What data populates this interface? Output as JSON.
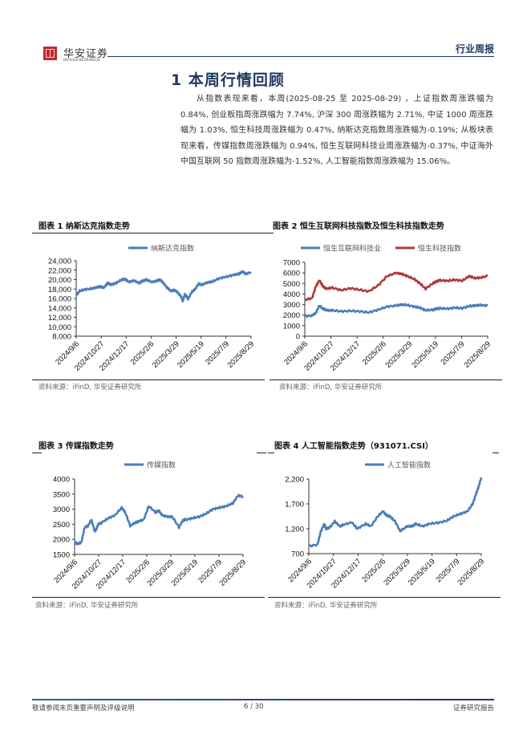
{
  "header": {
    "logo_cn": "华安证券",
    "logo_en": "HUAAN RESEARCH",
    "report_type": "行业周报"
  },
  "section": {
    "title": "1 本周行情回顾",
    "paragraph": "从指数表现来看，本周(2025-08-25 至 2025-08-29) ，上证指数周涨跌幅为0.84%, 创业板指周涨跌幅为 7.74%, 沪深 300 周涨跌幅为 2.71%, 中证 1000 周涨跌幅为 1.03%, 恒生科技周涨跌幅为 0.47%, 纳斯达克指数周涨跌幅为-0.19%; 从板块表现来看，传媒指数周涨跌幅为 0.94%, 恒生互联网科技业周涨跌幅为-0.37%, 中证海外中国互联网 50 指数周涨跌幅为-1.52%, 人工智能指数周涨跌幅为 15.06%。"
  },
  "figures": [
    {
      "title": "图表 1 纳斯达克指数走势",
      "source": "资料来源：iFinD, 华安证券研究所"
    },
    {
      "title": "图表 2 恒生互联网科技指数及恒生科技指数走势",
      "source": "资料来源：iFinD, 华安证券研究所"
    },
    {
      "title": "图表 3 传媒指数走势",
      "source": "资料来源：iFinD, 华安证券研究所"
    },
    {
      "title": "图表 4 人工智能指数走势（931071.CSI）",
      "source": "资料来源：iFinD, 华安证券研究所"
    }
  ],
  "footer": {
    "disclaimer": "敬请参阅末页重要声明及评级说明",
    "page": "6 / 30",
    "label": "证券研究报告"
  },
  "chart_data": [
    {
      "type": "line",
      "title": "图表 1 纳斯达克指数走势",
      "xlabel": "",
      "ylabel": "",
      "ylim": [
        8000,
        24000
      ],
      "yticks": [
        8000,
        10000,
        12000,
        14000,
        16000,
        18000,
        20000,
        22000,
        24000
      ],
      "ytick_labels": [
        "8,000",
        "10,000",
        "12,000",
        "14,000",
        "16,000",
        "18,000",
        "20,000",
        "22,000",
        "24,000"
      ],
      "categories": [
        "2024/9/6",
        "2024/10/27",
        "2024/12/17",
        "2025/2/6",
        "2025/3/29",
        "2025/5/19",
        "2025/7/9",
        "2025/8/29"
      ],
      "legend": "top",
      "grid": false,
      "series": [
        {
          "name": "纳斯达克指数",
          "color": "#4a7ebb",
          "x": [
            0,
            0.02,
            0.05,
            0.09,
            0.12,
            0.14,
            0.16,
            0.18,
            0.2,
            0.23,
            0.26,
            0.28,
            0.3,
            0.33,
            0.36,
            0.38,
            0.4,
            0.43,
            0.46,
            0.48,
            0.5,
            0.52,
            0.54,
            0.56,
            0.58,
            0.6,
            0.61,
            0.62,
            0.63,
            0.64,
            0.66,
            0.68,
            0.7,
            0.72,
            0.75,
            0.78,
            0.82,
            0.86,
            0.9,
            0.93,
            0.95,
            0.97,
            1
          ],
          "values": [
            16700,
            17600,
            17900,
            18100,
            18400,
            18500,
            18300,
            19300,
            18900,
            19300,
            20000,
            20100,
            19500,
            19800,
            19300,
            19700,
            20000,
            19500,
            19700,
            20000,
            19200,
            18300,
            17600,
            17800,
            17300,
            16400,
            15400,
            16800,
            16500,
            15900,
            17300,
            18000,
            19100,
            18900,
            19400,
            19600,
            20300,
            20600,
            21000,
            21200,
            21700,
            21200,
            21600
          ]
        }
      ]
    },
    {
      "type": "line",
      "title": "图表 2 恒生互联网科技指数及恒生科技指数走势",
      "xlabel": "",
      "ylabel": "",
      "ylim": [
        0,
        7000
      ],
      "yticks": [
        0,
        1000,
        2000,
        3000,
        4000,
        5000,
        6000,
        7000
      ],
      "categories": [
        "2024/9/6",
        "2024/10/27",
        "2024/12/17",
        "2025/2/6",
        "2025/3/29",
        "2025/5/19",
        "2025/7/9",
        "2025/8/29"
      ],
      "legend": "top",
      "grid": false,
      "series": [
        {
          "name": "恒生互联网科技业",
          "color": "#4a7ebb",
          "x": [
            0,
            0.04,
            0.06,
            0.08,
            0.1,
            0.12,
            0.15,
            0.2,
            0.25,
            0.3,
            0.35,
            0.4,
            0.45,
            0.5,
            0.53,
            0.56,
            0.6,
            0.63,
            0.66,
            0.7,
            0.72,
            0.74,
            0.78,
            0.82,
            0.86,
            0.9,
            0.93,
            0.96,
            1
          ],
          "values": [
            1900,
            1950,
            2200,
            2900,
            2600,
            2450,
            2450,
            2350,
            2400,
            2350,
            2250,
            2500,
            2800,
            2900,
            3000,
            2950,
            2800,
            2700,
            2450,
            2500,
            2600,
            2650,
            2600,
            2700,
            2650,
            2850,
            2900,
            2950,
            2900
          ]
        },
        {
          "name": "恒生科技指数",
          "color": "#b03a3a",
          "x": [
            0,
            0.04,
            0.06,
            0.08,
            0.1,
            0.12,
            0.15,
            0.2,
            0.25,
            0.3,
            0.35,
            0.4,
            0.45,
            0.5,
            0.53,
            0.56,
            0.6,
            0.63,
            0.66,
            0.7,
            0.72,
            0.74,
            0.78,
            0.82,
            0.86,
            0.9,
            0.93,
            0.96,
            1
          ],
          "values": [
            3450,
            3600,
            4700,
            5300,
            4700,
            4500,
            4600,
            4350,
            4550,
            4400,
            4250,
            4800,
            5700,
            6000,
            5900,
            5700,
            5400,
            5000,
            4500,
            5000,
            5200,
            5300,
            5250,
            5350,
            5250,
            5700,
            5500,
            5550,
            5700
          ]
        }
      ]
    },
    {
      "type": "line",
      "title": "图表 3 传媒指数走势",
      "xlabel": "",
      "ylabel": "",
      "ylim": [
        1500,
        4000
      ],
      "yticks": [
        1500,
        2000,
        2500,
        3000,
        3500,
        4000
      ],
      "categories": [
        "2024/9/6",
        "2024/10/27",
        "2024/12/17",
        "2025/2/6",
        "2025/3/29",
        "2025/5/19",
        "2025/7/9",
        "2025/8/29"
      ],
      "legend": "top",
      "grid": false,
      "series": [
        {
          "name": "传媒指数",
          "color": "#4a7ebb",
          "x": [
            0,
            0.02,
            0.04,
            0.06,
            0.08,
            0.1,
            0.12,
            0.13,
            0.14,
            0.16,
            0.2,
            0.24,
            0.28,
            0.3,
            0.33,
            0.36,
            0.38,
            0.41,
            0.44,
            0.48,
            0.5,
            0.52,
            0.55,
            0.58,
            0.62,
            0.64,
            0.65,
            0.66,
            0.7,
            0.74,
            0.78,
            0.82,
            0.86,
            0.9,
            0.94,
            0.97,
            1
          ],
          "values": [
            1900,
            1850,
            1900,
            2400,
            2450,
            2650,
            2250,
            2350,
            2500,
            2550,
            2700,
            2800,
            3050,
            2900,
            2450,
            2550,
            2600,
            2650,
            3100,
            2900,
            2950,
            2800,
            2750,
            2750,
            2400,
            2600,
            2650,
            2650,
            2700,
            2750,
            2850,
            3000,
            3050,
            3100,
            3200,
            3450,
            3420
          ]
        }
      ]
    },
    {
      "type": "line",
      "title": "图表 4 人工智能指数走势（931071.CSI）",
      "xlabel": "",
      "ylabel": "",
      "ylim": [
        700,
        2200
      ],
      "yticks": [
        700,
        1200,
        1700,
        2200
      ],
      "ytick_labels": [
        "700",
        "1,200",
        "1,700",
        "2,200"
      ],
      "categories": [
        "2024/9/6",
        "2024/10/27",
        "2024/12/17",
        "2025/2/6",
        "2025/3/29",
        "2025/5/19",
        "2025/7/9",
        "2025/8/29"
      ],
      "legend": "top",
      "grid": false,
      "series": [
        {
          "name": "人工智能指数",
          "color": "#4a7ebb",
          "x": [
            0,
            0.05,
            0.07,
            0.09,
            0.1,
            0.12,
            0.15,
            0.18,
            0.2,
            0.25,
            0.28,
            0.33,
            0.36,
            0.4,
            0.43,
            0.45,
            0.47,
            0.5,
            0.53,
            0.57,
            0.6,
            0.62,
            0.66,
            0.7,
            0.75,
            0.8,
            0.84,
            0.88,
            0.92,
            0.95,
            0.97,
            0.985,
            1
          ],
          "values": [
            850,
            880,
            1150,
            1300,
            1200,
            1220,
            1350,
            1250,
            1280,
            1330,
            1200,
            1300,
            1250,
            1450,
            1550,
            1470,
            1450,
            1350,
            1150,
            1250,
            1250,
            1300,
            1250,
            1300,
            1320,
            1360,
            1450,
            1500,
            1550,
            1700,
            1900,
            2050,
            2230
          ]
        }
      ]
    }
  ]
}
